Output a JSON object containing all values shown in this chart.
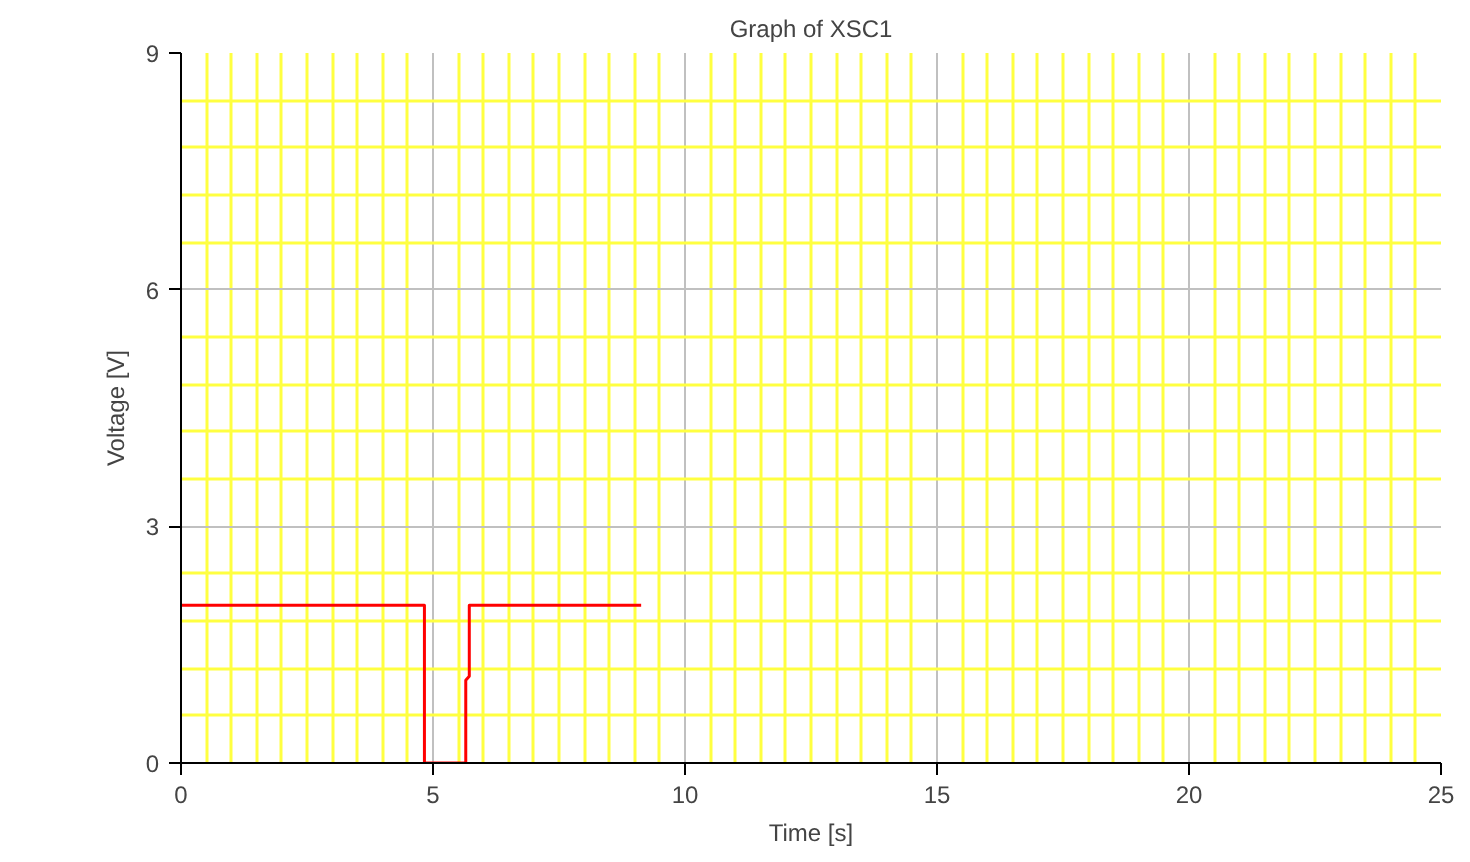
{
  "chart_data": {
    "type": "line",
    "title": "Graph of XSC1",
    "xlabel": "Time [s]",
    "ylabel": "Voltage [V]",
    "series": [
      {
        "color": "#ff0000",
        "x": [
          0,
          4.83,
          4.83,
          5.65,
          5.65,
          5.72,
          5.72,
          9.13
        ],
        "values": [
          2,
          2,
          0,
          0,
          1.05,
          1.1,
          2,
          2
        ]
      }
    ],
    "xlim": [
      0,
      25
    ],
    "ylim": [
      0,
      9
    ],
    "xticks": [
      0,
      {
        "value": 0.5,
        "label": null
      },
      {
        "value": 1,
        "label": null
      },
      {
        "value": 1.5,
        "label": null
      },
      {
        "value": 2,
        "label": null
      },
      {
        "value": 2.5,
        "label": null
      },
      {
        "value": 3,
        "label": null
      },
      {
        "value": 3.5,
        "label": null
      },
      {
        "value": 4,
        "label": null
      },
      {
        "value": 4.5,
        "label": null
      },
      5,
      {
        "value": 5.5,
        "label": null
      },
      {
        "value": 6,
        "label": null
      },
      {
        "value": 6.5,
        "label": null
      },
      {
        "value": 7,
        "label": null
      },
      {
        "value": 7.5,
        "label": null
      },
      {
        "value": 8,
        "label": null
      },
      {
        "value": 8.5,
        "label": null
      },
      {
        "value": 9,
        "label": null
      },
      {
        "value": 9.5,
        "label": null
      },
      10,
      {
        "value": 10.5,
        "label": null
      },
      {
        "value": 11,
        "label": null
      },
      {
        "value": 11.5,
        "label": null
      },
      {
        "value": 12,
        "label": null
      },
      {
        "value": 12.5,
        "label": null
      },
      {
        "value": 13,
        "label": null
      },
      {
        "value": 13.5,
        "label": null
      },
      {
        "value": 14,
        "label": null
      },
      {
        "value": 14.5,
        "label": null
      },
      15,
      {
        "value": 15.5,
        "label": null
      },
      {
        "value": 16,
        "label": null
      },
      {
        "value": 16.5,
        "label": null
      },
      {
        "value": 17,
        "label": null
      },
      {
        "value": 17.5,
        "label": null
      },
      {
        "value": 18,
        "label": null
      },
      {
        "value": 18.5,
        "label": null
      },
      {
        "value": 19,
        "label": null
      },
      {
        "value": 19.5,
        "label": null
      },
      20,
      {
        "value": 20.5,
        "label": null
      },
      {
        "value": 21,
        "label": null
      },
      {
        "value": 21.5,
        "label": null
      },
      {
        "value": 22,
        "label": null
      },
      {
        "value": 22.5,
        "label": null
      },
      {
        "value": 23,
        "label": null
      },
      {
        "value": 23.5,
        "label": null
      },
      {
        "value": 24,
        "label": null
      },
      {
        "value": 24.5,
        "label": null
      },
      25
    ],
    "yticks": [
      0,
      {
        "value": 0.6,
        "label": null
      },
      {
        "value": 1.2,
        "label": null
      },
      {
        "value": 1.8,
        "label": null
      },
      {
        "value": 2.4,
        "label": null
      },
      3,
      {
        "value": 3.6,
        "label": null
      },
      {
        "value": 4.2,
        "label": null
      },
      {
        "value": 4.8,
        "label": null
      },
      {
        "value": 5.4,
        "label": null
      },
      6,
      {
        "value": 6.6,
        "label": null
      },
      {
        "value": 7.2,
        "label": null
      },
      {
        "value": 7.8,
        "label": null
      },
      {
        "value": 8.4,
        "label": null
      },
      9
    ],
    "grid": true,
    "marker": "none",
    "line_style": "solid"
  }
}
